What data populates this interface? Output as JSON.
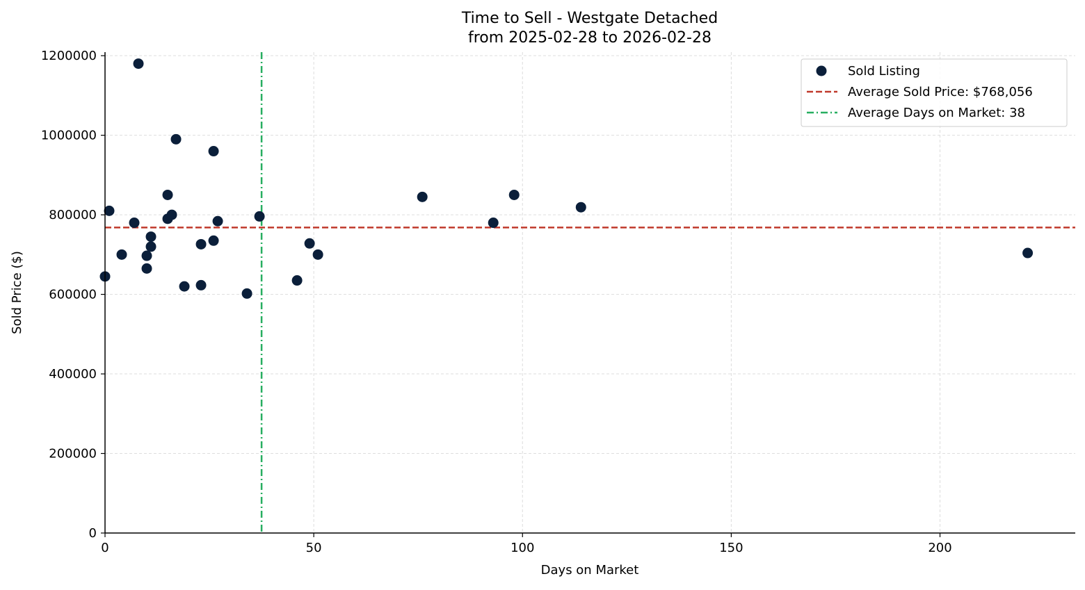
{
  "chart_data": {
    "type": "scatter",
    "title": "Time to Sell - Westgate Detached",
    "subtitle": "from 2025-02-28 to 2026-02-28",
    "xlabel": "Days on Market",
    "ylabel": "Sold Price ($)",
    "xlim": [
      0,
      232.4
    ],
    "ylim": [
      0,
      1209000
    ],
    "xticks": [
      0,
      50,
      100,
      150,
      200
    ],
    "xtick_labels": [
      "0",
      "50",
      "100",
      "150",
      "200"
    ],
    "yticks": [
      0,
      200000,
      400000,
      600000,
      800000,
      1000000,
      1200000
    ],
    "ytick_labels": [
      "0",
      "200000",
      "400000",
      "600000",
      "800000",
      "1000000",
      "1200000"
    ],
    "grid": true,
    "legend_position": "top-right",
    "series": [
      {
        "name": "Sold Listing",
        "color": "#0b1f3a",
        "x": [
          0,
          1,
          4,
          7,
          8,
          10,
          10,
          11,
          11,
          15,
          15,
          16,
          17,
          19,
          23,
          23,
          26,
          26,
          27,
          34,
          37,
          46,
          49,
          51,
          76,
          93,
          98,
          114,
          221
        ],
        "y": [
          645000,
          810000,
          700000,
          780000,
          1180000,
          697000,
          665000,
          745000,
          720000,
          850000,
          790000,
          800000,
          990000,
          620000,
          726000,
          623000,
          960000,
          735000,
          784000,
          602000,
          796000,
          635000,
          728000,
          700000,
          845000,
          780000,
          850000,
          819000,
          704000
        ]
      }
    ],
    "reference_lines": [
      {
        "name": "Average Sold Price: $768,056",
        "orientation": "horizontal",
        "value": 768056,
        "style": "dashed",
        "color": "#c0392b"
      },
      {
        "name": "Average Days on Market: 38",
        "orientation": "vertical",
        "value": 37.5,
        "style": "dashdot",
        "color": "#27ae60"
      }
    ]
  }
}
